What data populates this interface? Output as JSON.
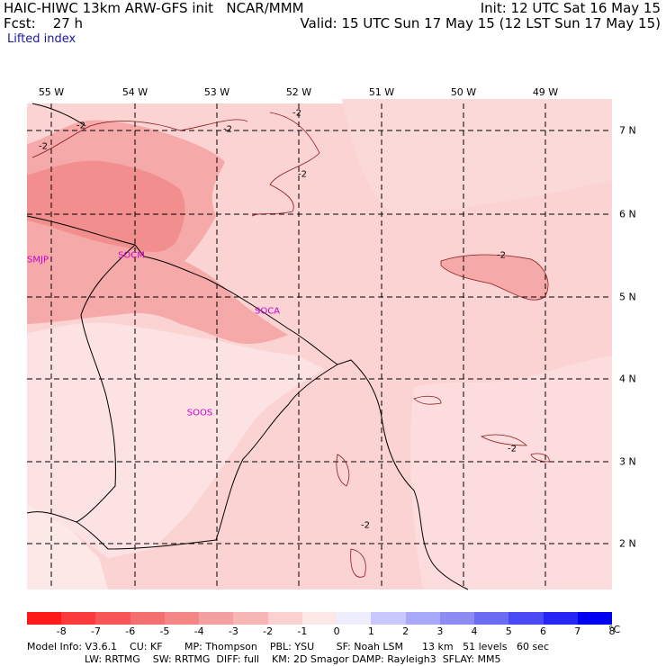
{
  "header": {
    "title": "HAIC-HIWC 13km ARW-GFS init   NCAR/MMM",
    "forecast": "Fcst:    27 h",
    "field": "Lifted index",
    "init": "Init: 12 UTC Sat 16 May 15",
    "valid": "Valid: 15 UTC Sun 17 May 15 (12 LST Sun 17 May 15)"
  },
  "map": {
    "longitudes": [
      "55 W",
      "54 W",
      "53 W",
      "52 W",
      "51 W",
      "50 W",
      "49 W"
    ],
    "latitudes": [
      "7 N",
      "6 N",
      "5 N",
      "4 N",
      "3 N",
      "2 N"
    ],
    "contour_labels": [
      "-2",
      "-2",
      "-2",
      "-2",
      "-2",
      "-2",
      "-2",
      "-2"
    ],
    "stations": [
      "SMJP",
      "SOCM",
      "SOCA",
      "SOOS"
    ]
  },
  "legend": {
    "values": [
      "-8",
      "-7",
      "-6",
      "-5",
      "-4",
      "-3",
      "-2",
      "-1",
      "0",
      "1",
      "2",
      "3",
      "4",
      "5",
      "6",
      "7",
      "8"
    ],
    "unit": "°C",
    "colors": [
      "#ff1a1a",
      "#fb3b3b",
      "#f85656",
      "#f46f6f",
      "#f48686",
      "#f5a0a0",
      "#f7b6b6",
      "#fad0d0",
      "#fde8e8",
      "#eeeeff",
      "#c8c8ff",
      "#a8a8f8",
      "#8c8cf4",
      "#6b6bf4",
      "#4a4af4",
      "#2626f4",
      "#0000f0"
    ]
  },
  "footer": {
    "line1": "Model Info: V3.6.1    CU: KF       MP: Thompson    PBL: YSU       SF: Noah LSM      13 km   51 levels   60 sec",
    "line2": "LW: RRTMG    SW: RRTMG  DIFF: full    KM: 2D Smagor DAMP: Rayleigh3  SFLAY: MM5"
  }
}
